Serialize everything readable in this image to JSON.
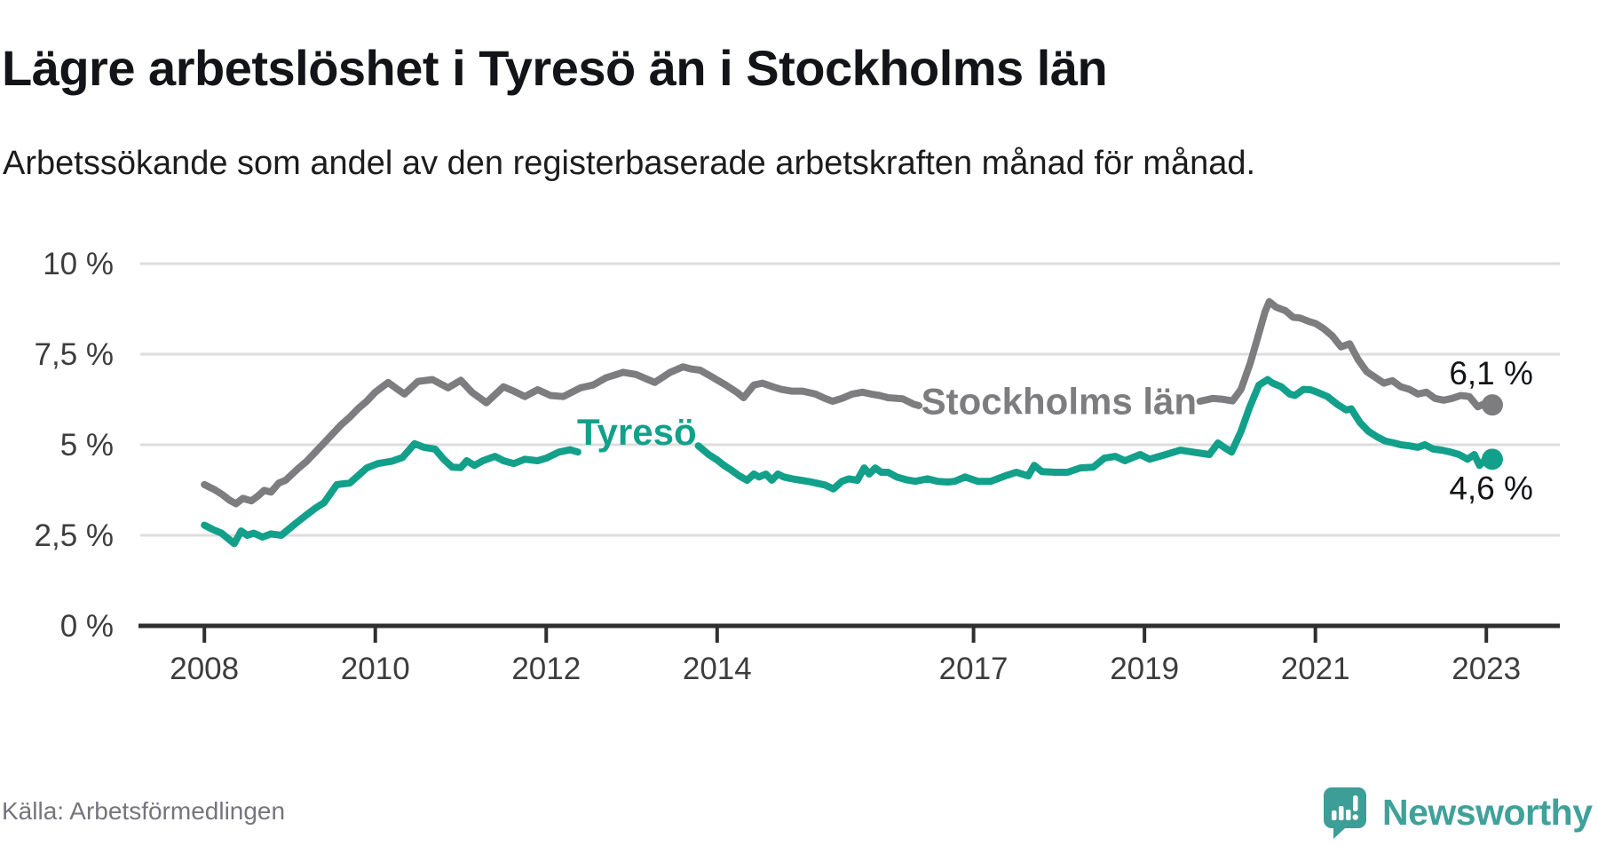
{
  "title": "Lägre arbetslöshet i Tyresö än i Stockholms län",
  "subtitle": "Arbetssökande som andel av den registerbaserade arbetskraften månad för månad.",
  "footer": {
    "source": "Källa: Arbetsförmedlingen",
    "brand": "Newsworthy",
    "brand_color": "#3fa19a"
  },
  "colors": {
    "series_stockholm": "#7d7d80",
    "series_tyreso": "#12a08b",
    "grid": "#dddddd",
    "axis": "#2f2f2f",
    "tick_text": "#3d3d3d",
    "value_label_text": "#121417"
  },
  "chart_data": {
    "type": "line",
    "title": "Lägre arbetslöshet i Tyresö än i Stockholms län",
    "subtitle": "Arbetssökande som andel av den registerbaserade arbetskraften månad för månad.",
    "source": "Källa: Arbetsförmedlingen",
    "grid": "horizontal",
    "legend_position": "inline-labels",
    "x_axis": {
      "range": [
        2007.25,
        2023.86
      ],
      "tick_years": [
        2008,
        2010,
        2012,
        2014,
        2017,
        2019,
        2021,
        2023
      ],
      "tick_labels": [
        "2008",
        "2010",
        "2012",
        "2014",
        "2017",
        "2019",
        "2021",
        "2023"
      ]
    },
    "y_axis": {
      "range": [
        0,
        10
      ],
      "unit": "%",
      "ticks": [
        {
          "value": 0,
          "label": "0 %"
        },
        {
          "value": 2.5,
          "label": "2,5 %"
        },
        {
          "value": 5,
          "label": "5 %"
        },
        {
          "value": 7.5,
          "label": "7,5 %"
        },
        {
          "value": 10,
          "label": "10 %"
        }
      ]
    },
    "series": [
      {
        "id": "stockholms-lan",
        "name": "Stockholms län",
        "color": "#7d7d80",
        "inline_label": {
          "text": "Stockholms län",
          "x": 2018.0,
          "y": 6.2
        },
        "end_label": "6,1 %",
        "end_label_pos": "above",
        "end_point": [
          2023.07,
          6.1
        ],
        "segments": [
          [
            [
              2008.0,
              3.9
            ],
            [
              2008.12,
              3.76
            ],
            [
              2008.2,
              3.64
            ],
            [
              2008.3,
              3.46
            ],
            [
              2008.37,
              3.37
            ],
            [
              2008.45,
              3.52
            ],
            [
              2008.55,
              3.45
            ],
            [
              2008.62,
              3.57
            ],
            [
              2008.7,
              3.74
            ],
            [
              2008.78,
              3.69
            ],
            [
              2008.87,
              3.94
            ],
            [
              2008.95,
              4.02
            ],
            [
              2009.1,
              4.35
            ],
            [
              2009.2,
              4.55
            ],
            [
              2009.3,
              4.8
            ],
            [
              2009.4,
              5.05
            ],
            [
              2009.5,
              5.3
            ],
            [
              2009.6,
              5.55
            ],
            [
              2009.7,
              5.76
            ],
            [
              2009.8,
              6.0
            ],
            [
              2009.9,
              6.2
            ],
            [
              2010.0,
              6.45
            ],
            [
              2010.15,
              6.72
            ],
            [
              2010.25,
              6.55
            ],
            [
              2010.34,
              6.4
            ],
            [
              2010.5,
              6.75
            ],
            [
              2010.67,
              6.8
            ],
            [
              2010.85,
              6.57
            ],
            [
              2011.0,
              6.78
            ],
            [
              2011.13,
              6.45
            ],
            [
              2011.3,
              6.16
            ],
            [
              2011.5,
              6.6
            ],
            [
              2011.62,
              6.48
            ],
            [
              2011.75,
              6.33
            ],
            [
              2011.9,
              6.52
            ],
            [
              2012.05,
              6.36
            ],
            [
              2012.2,
              6.33
            ],
            [
              2012.4,
              6.57
            ],
            [
              2012.55,
              6.65
            ],
            [
              2012.7,
              6.85
            ],
            [
              2012.9,
              7.0
            ],
            [
              2013.05,
              6.94
            ],
            [
              2013.27,
              6.72
            ],
            [
              2013.45,
              7.0
            ],
            [
              2013.6,
              7.15
            ],
            [
              2013.7,
              7.09
            ],
            [
              2013.8,
              7.06
            ],
            [
              2013.92,
              6.9
            ],
            [
              2014.1,
              6.65
            ],
            [
              2014.23,
              6.45
            ],
            [
              2014.31,
              6.3
            ],
            [
              2014.43,
              6.65
            ],
            [
              2014.53,
              6.7
            ],
            [
              2014.65,
              6.6
            ],
            [
              2014.75,
              6.53
            ],
            [
              2014.87,
              6.48
            ],
            [
              2015.0,
              6.48
            ],
            [
              2015.15,
              6.4
            ],
            [
              2015.26,
              6.28
            ],
            [
              2015.35,
              6.2
            ],
            [
              2015.46,
              6.28
            ],
            [
              2015.58,
              6.4
            ],
            [
              2015.7,
              6.45
            ],
            [
              2015.8,
              6.4
            ],
            [
              2015.9,
              6.36
            ],
            [
              2016.0,
              6.3
            ],
            [
              2016.17,
              6.27
            ],
            [
              2016.3,
              6.12
            ],
            [
              2016.36,
              6.08
            ]
          ],
          [
            [
              2019.65,
              6.2
            ],
            [
              2019.8,
              6.28
            ],
            [
              2019.9,
              6.26
            ],
            [
              2020.03,
              6.21
            ],
            [
              2020.13,
              6.53
            ],
            [
              2020.24,
              7.27
            ],
            [
              2020.34,
              8.08
            ],
            [
              2020.41,
              8.67
            ],
            [
              2020.46,
              8.95
            ],
            [
              2020.54,
              8.8
            ],
            [
              2020.65,
              8.7
            ],
            [
              2020.74,
              8.52
            ],
            [
              2020.82,
              8.5
            ],
            [
              2020.93,
              8.4
            ],
            [
              2021.0,
              8.35
            ],
            [
              2021.1,
              8.2
            ],
            [
              2021.2,
              8.0
            ],
            [
              2021.3,
              7.7
            ],
            [
              2021.4,
              7.79
            ],
            [
              2021.5,
              7.35
            ],
            [
              2021.6,
              7.02
            ],
            [
              2021.7,
              6.86
            ],
            [
              2021.8,
              6.7
            ],
            [
              2021.9,
              6.77
            ],
            [
              2022.0,
              6.6
            ],
            [
              2022.1,
              6.53
            ],
            [
              2022.2,
              6.4
            ],
            [
              2022.3,
              6.45
            ],
            [
              2022.4,
              6.28
            ],
            [
              2022.5,
              6.23
            ],
            [
              2022.6,
              6.28
            ],
            [
              2022.7,
              6.36
            ],
            [
              2022.8,
              6.33
            ],
            [
              2022.9,
              6.05
            ],
            [
              2023.0,
              6.16
            ],
            [
              2023.07,
              6.1
            ]
          ]
        ]
      },
      {
        "id": "tyreso",
        "name": "Tyresö",
        "color": "#12a08b",
        "inline_label": {
          "text": "Tyresö",
          "x": 2013.06,
          "y": 5.35
        },
        "end_label": "4,6 %",
        "end_label_pos": "below",
        "end_point": [
          2023.07,
          4.6
        ],
        "segments": [
          [
            [
              2008.0,
              2.78
            ],
            [
              2008.1,
              2.66
            ],
            [
              2008.2,
              2.56
            ],
            [
              2008.35,
              2.27
            ],
            [
              2008.43,
              2.62
            ],
            [
              2008.5,
              2.5
            ],
            [
              2008.58,
              2.56
            ],
            [
              2008.68,
              2.45
            ],
            [
              2008.78,
              2.54
            ],
            [
              2008.9,
              2.5
            ],
            [
              2009.07,
              2.83
            ],
            [
              2009.2,
              3.07
            ],
            [
              2009.3,
              3.25
            ],
            [
              2009.4,
              3.4
            ],
            [
              2009.55,
              3.9
            ],
            [
              2009.7,
              3.94
            ],
            [
              2009.8,
              4.15
            ],
            [
              2009.9,
              4.36
            ],
            [
              2010.03,
              4.48
            ],
            [
              2010.2,
              4.55
            ],
            [
              2010.32,
              4.65
            ],
            [
              2010.46,
              5.03
            ],
            [
              2010.57,
              4.93
            ],
            [
              2010.7,
              4.88
            ],
            [
              2010.8,
              4.6
            ],
            [
              2010.9,
              4.38
            ],
            [
              2011.0,
              4.37
            ],
            [
              2011.07,
              4.56
            ],
            [
              2011.16,
              4.43
            ],
            [
              2011.26,
              4.56
            ],
            [
              2011.4,
              4.68
            ],
            [
              2011.5,
              4.56
            ],
            [
              2011.62,
              4.48
            ],
            [
              2011.75,
              4.6
            ],
            [
              2011.9,
              4.56
            ],
            [
              2012.0,
              4.63
            ],
            [
              2012.15,
              4.8
            ],
            [
              2012.28,
              4.86
            ],
            [
              2012.37,
              4.8
            ]
          ],
          [
            [
              2013.78,
              4.97
            ],
            [
              2013.9,
              4.73
            ],
            [
              2014.0,
              4.58
            ],
            [
              2014.08,
              4.43
            ],
            [
              2014.16,
              4.31
            ],
            [
              2014.26,
              4.14
            ],
            [
              2014.35,
              4.02
            ],
            [
              2014.43,
              4.19
            ],
            [
              2014.49,
              4.11
            ],
            [
              2014.57,
              4.19
            ],
            [
              2014.64,
              4.02
            ],
            [
              2014.71,
              4.19
            ],
            [
              2014.78,
              4.11
            ],
            [
              2014.88,
              4.06
            ],
            [
              2014.98,
              4.02
            ],
            [
              2015.08,
              3.98
            ],
            [
              2015.16,
              3.94
            ],
            [
              2015.26,
              3.89
            ],
            [
              2015.36,
              3.78
            ],
            [
              2015.46,
              3.99
            ],
            [
              2015.54,
              4.06
            ],
            [
              2015.64,
              4.02
            ],
            [
              2015.72,
              4.36
            ],
            [
              2015.78,
              4.19
            ],
            [
              2015.85,
              4.36
            ],
            [
              2015.92,
              4.24
            ],
            [
              2016.0,
              4.24
            ],
            [
              2016.1,
              4.11
            ],
            [
              2016.22,
              4.03
            ],
            [
              2016.32,
              3.99
            ],
            [
              2016.46,
              4.06
            ],
            [
              2016.58,
              3.99
            ],
            [
              2016.7,
              3.97
            ],
            [
              2016.78,
              3.99
            ],
            [
              2016.9,
              4.11
            ],
            [
              2017.05,
              3.99
            ],
            [
              2017.2,
              3.99
            ],
            [
              2017.37,
              4.14
            ],
            [
              2017.5,
              4.24
            ],
            [
              2017.64,
              4.14
            ],
            [
              2017.71,
              4.43
            ],
            [
              2017.8,
              4.26
            ],
            [
              2017.95,
              4.24
            ],
            [
              2018.1,
              4.24
            ],
            [
              2018.25,
              4.36
            ],
            [
              2018.4,
              4.38
            ],
            [
              2018.53,
              4.63
            ],
            [
              2018.66,
              4.68
            ],
            [
              2018.77,
              4.56
            ],
            [
              2018.95,
              4.73
            ],
            [
              2019.06,
              4.6
            ],
            [
              2019.25,
              4.73
            ],
            [
              2019.42,
              4.85
            ],
            [
              2019.56,
              4.8
            ],
            [
              2019.76,
              4.73
            ],
            [
              2019.86,
              5.05
            ],
            [
              2019.93,
              4.93
            ],
            [
              2020.02,
              4.8
            ],
            [
              2020.13,
              5.37
            ],
            [
              2020.23,
              6.03
            ],
            [
              2020.34,
              6.65
            ],
            [
              2020.44,
              6.8
            ],
            [
              2020.5,
              6.7
            ],
            [
              2020.6,
              6.6
            ],
            [
              2020.7,
              6.4
            ],
            [
              2020.76,
              6.36
            ],
            [
              2020.86,
              6.53
            ],
            [
              2020.94,
              6.52
            ],
            [
              2021.02,
              6.45
            ],
            [
              2021.14,
              6.33
            ],
            [
              2021.26,
              6.11
            ],
            [
              2021.36,
              5.96
            ],
            [
              2021.42,
              5.99
            ],
            [
              2021.52,
              5.62
            ],
            [
              2021.62,
              5.37
            ],
            [
              2021.72,
              5.22
            ],
            [
              2021.82,
              5.1
            ],
            [
              2021.92,
              5.05
            ],
            [
              2022.0,
              5.0
            ],
            [
              2022.1,
              4.97
            ],
            [
              2022.2,
              4.93
            ],
            [
              2022.28,
              5.0
            ],
            [
              2022.38,
              4.88
            ],
            [
              2022.48,
              4.85
            ],
            [
              2022.58,
              4.8
            ],
            [
              2022.68,
              4.73
            ],
            [
              2022.78,
              4.6
            ],
            [
              2022.86,
              4.73
            ],
            [
              2022.92,
              4.43
            ],
            [
              2023.0,
              4.62
            ],
            [
              2023.07,
              4.6
            ]
          ]
        ]
      }
    ]
  }
}
